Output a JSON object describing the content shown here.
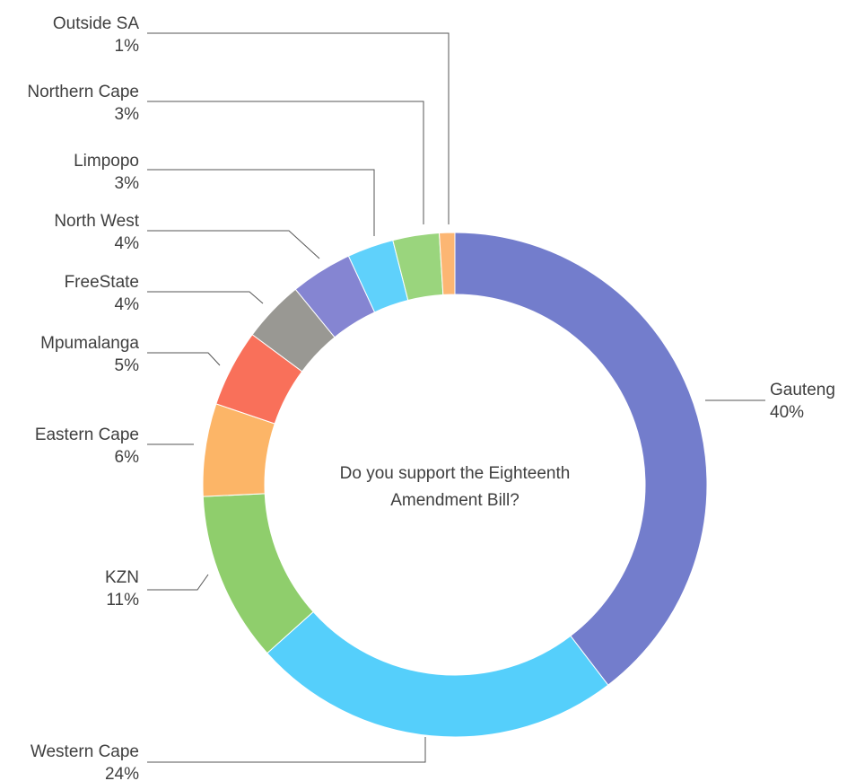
{
  "chart_data": {
    "type": "pie",
    "title": "Do you support the Eighteenth Amendment Bill?",
    "title_lines": [
      "Do you support the Eighteenth",
      "Amendment Bill?"
    ],
    "slices": [
      {
        "name": "Gauteng",
        "value": 40,
        "label": "40%",
        "color": "#737dcc"
      },
      {
        "name": "Western Cape",
        "value": 24,
        "label": "24%",
        "color": "#55cffb"
      },
      {
        "name": "KZN",
        "value": 11,
        "label": "11%",
        "color": "#8fce6c"
      },
      {
        "name": "Eastern Cape",
        "value": 6,
        "label": "6%",
        "color": "#fcb567"
      },
      {
        "name": "Mpumalanga",
        "value": 5,
        "label": "5%",
        "color": "#f9705a"
      },
      {
        "name": "FreeState",
        "value": 4,
        "label": "4%",
        "color": "#999893"
      },
      {
        "name": "North West",
        "value": 4,
        "label": "4%",
        "color": "#8585d2"
      },
      {
        "name": "Limpopo",
        "value": 3,
        "label": "3%",
        "color": "#5fd1fb"
      },
      {
        "name": "Northern Cape",
        "value": 3,
        "label": "3%",
        "color": "#9ad57d"
      },
      {
        "name": "Outside SA",
        "value": 1,
        "label": "1%",
        "color": "#fcb673"
      }
    ]
  }
}
